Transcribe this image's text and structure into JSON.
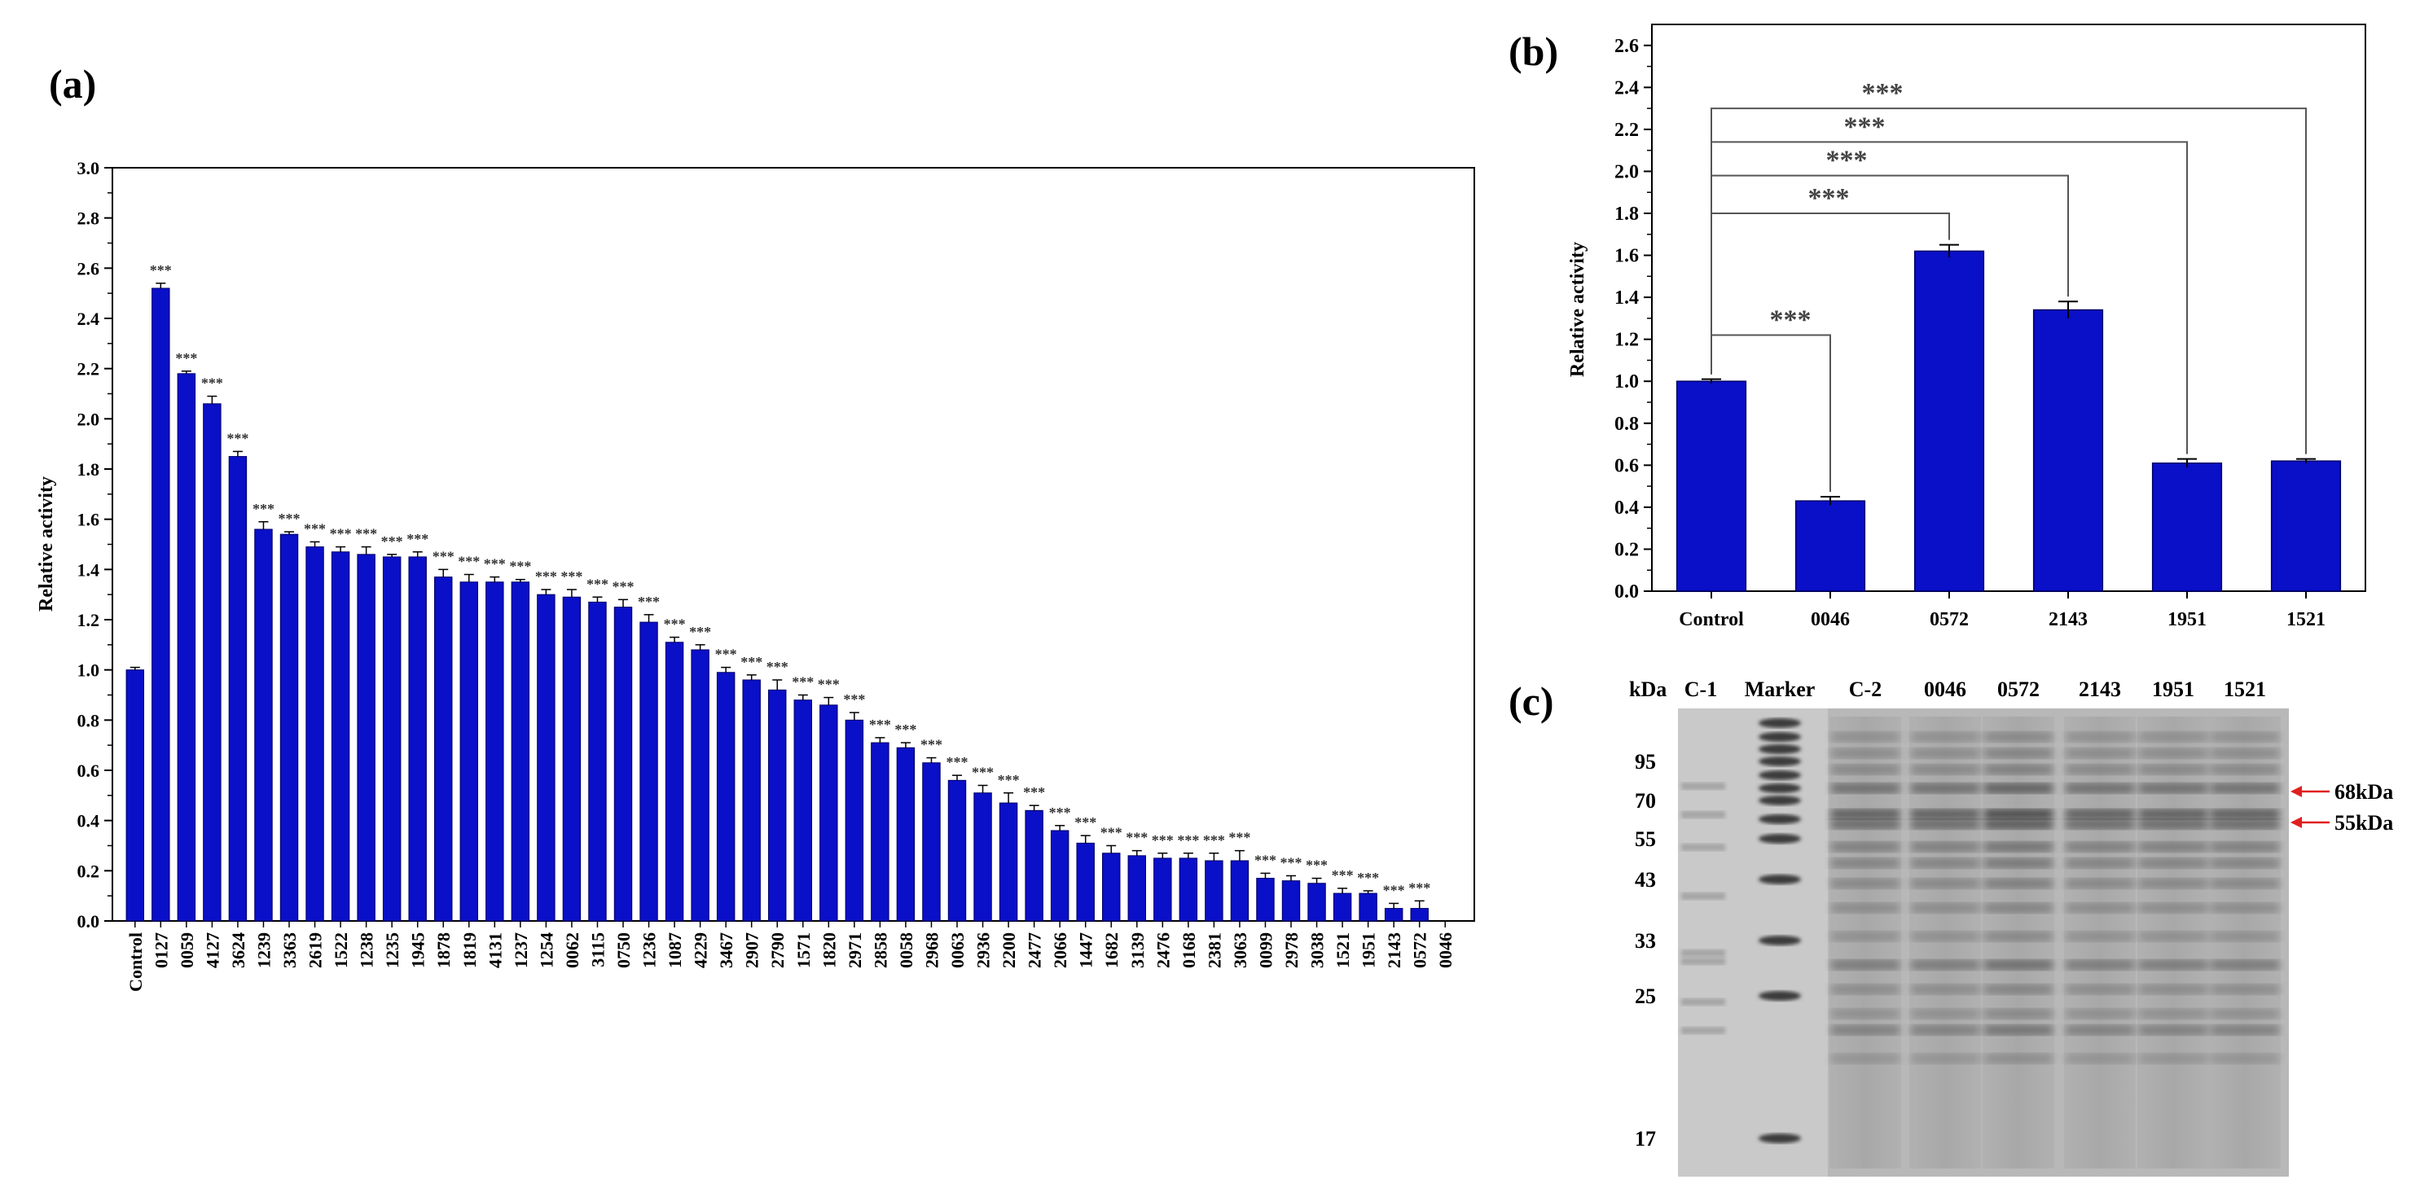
{
  "colors": {
    "bar": "#0a0fc8",
    "bar_edge": "#000066",
    "arrow": "#e02020"
  },
  "chart_data": [
    {
      "panel": "(a)",
      "type": "bar",
      "ylabel": "Relative activity",
      "ylim": [
        0,
        3.0
      ],
      "yticks": [
        "0.0",
        "0.2",
        "0.4",
        "0.6",
        "0.8",
        "1.0",
        "1.2",
        "1.4",
        "1.6",
        "1.8",
        "2.0",
        "2.2",
        "2.4",
        "2.6",
        "2.8",
        "3.0"
      ],
      "categories": [
        "Control",
        "0127",
        "0059",
        "4127",
        "3624",
        "1239",
        "3363",
        "2619",
        "1522",
        "1238",
        "1235",
        "1945",
        "1878",
        "1819",
        "4131",
        "1237",
        "1254",
        "0062",
        "3115",
        "0750",
        "1236",
        "1087",
        "4229",
        "3467",
        "2907",
        "2790",
        "1571",
        "1820",
        "2971",
        "2858",
        "0058",
        "2968",
        "0063",
        "2936",
        "2200",
        "2477",
        "2066",
        "1447",
        "1682",
        "3139",
        "2476",
        "0168",
        "2381",
        "3063",
        "0099",
        "2978",
        "3038",
        "1521",
        "1951",
        "2143",
        "0572",
        "0046"
      ],
      "values": [
        1.0,
        2.52,
        2.18,
        2.06,
        1.85,
        1.56,
        1.54,
        1.49,
        1.47,
        1.46,
        1.45,
        1.45,
        1.37,
        1.35,
        1.35,
        1.35,
        1.3,
        1.29,
        1.27,
        1.25,
        1.19,
        1.11,
        1.08,
        0.99,
        0.96,
        0.92,
        0.88,
        0.86,
        0.8,
        0.71,
        0.69,
        0.63,
        0.56,
        0.51,
        0.47,
        0.44,
        0.36,
        0.31,
        0.27,
        0.26,
        0.25,
        0.25,
        0.24,
        0.24,
        0.17,
        0.16,
        0.15,
        0.11,
        0.11,
        0.05,
        0.05,
        0.0
      ],
      "errors": [
        0.01,
        0.02,
        0.01,
        0.03,
        0.02,
        0.03,
        0.01,
        0.02,
        0.02,
        0.03,
        0.01,
        0.02,
        0.03,
        0.03,
        0.02,
        0.01,
        0.02,
        0.03,
        0.02,
        0.03,
        0.03,
        0.02,
        0.02,
        0.02,
        0.02,
        0.04,
        0.02,
        0.03,
        0.03,
        0.02,
        0.02,
        0.02,
        0.02,
        0.03,
        0.04,
        0.02,
        0.02,
        0.03,
        0.03,
        0.02,
        0.02,
        0.02,
        0.03,
        0.04,
        0.02,
        0.02,
        0.02,
        0.02,
        0.01,
        0.02,
        0.03,
        0.0
      ],
      "significance": "***"
    },
    {
      "panel": "(b)",
      "type": "bar",
      "ylabel": "Relative activity",
      "ylim": [
        0,
        2.7
      ],
      "yticks": [
        "0.0",
        "0.2",
        "0.4",
        "0.6",
        "0.8",
        "1.0",
        "1.2",
        "1.4",
        "1.6",
        "1.8",
        "2.0",
        "2.2",
        "2.4",
        "2.6"
      ],
      "categories": [
        "Control",
        "0046",
        "0572",
        "2143",
        "1951",
        "1521"
      ],
      "values": [
        1.0,
        0.43,
        1.62,
        1.34,
        0.61,
        0.62
      ],
      "errors": [
        0.01,
        0.02,
        0.03,
        0.04,
        0.02,
        0.01
      ],
      "brackets": [
        {
          "to": "0046",
          "height": 1.22,
          "label": "***"
        },
        {
          "to": "0572",
          "height": 1.8,
          "label": "***"
        },
        {
          "to": "2143",
          "height": 1.98,
          "label": "***"
        },
        {
          "to": "1951",
          "height": 2.14,
          "label": "***"
        },
        {
          "to": "1521",
          "height": 2.3,
          "label": "***"
        }
      ]
    }
  ],
  "gel": {
    "panel": "(c)",
    "unit": "kDa",
    "lanes": [
      "C-1",
      "Marker",
      "C-2",
      "0046",
      "0572",
      "2143",
      "1951",
      "1521"
    ],
    "markers": [
      "95",
      "70",
      "55",
      "43",
      "33",
      "25",
      "17"
    ],
    "arrows": [
      "68kDa",
      "55kDa"
    ]
  }
}
